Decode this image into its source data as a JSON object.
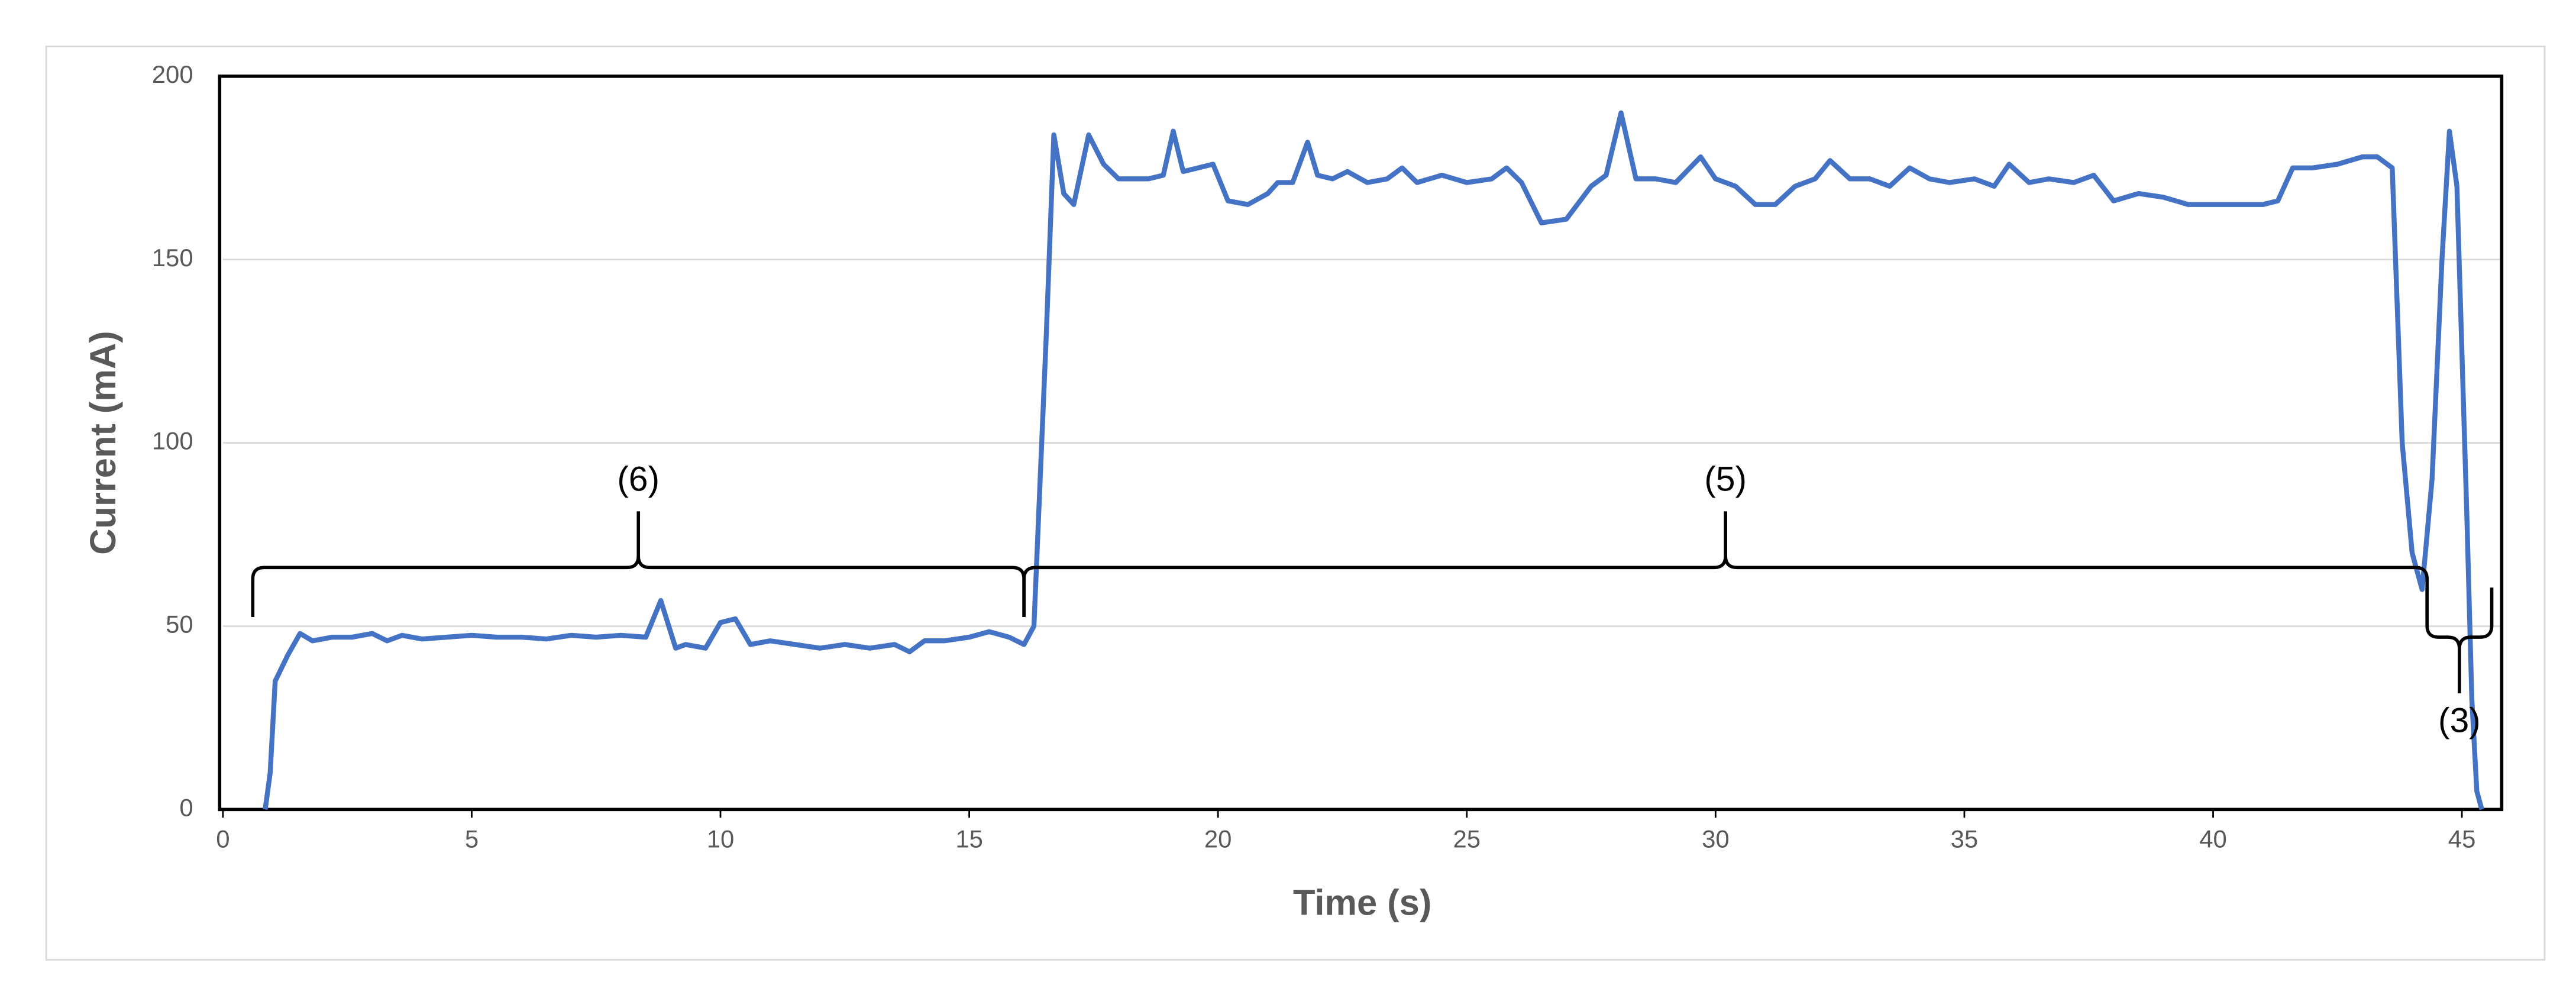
{
  "chart_data": {
    "type": "line",
    "x_label": "Time (s)",
    "y_label": "Current (mA)",
    "color": "#4472c4",
    "x": [
      0.85,
      0.95,
      1.05,
      1.3,
      1.55,
      1.8,
      2.2,
      2.6,
      3.0,
      3.3,
      3.6,
      4.0,
      4.5,
      5.0,
      5.5,
      6.0,
      6.5,
      7.0,
      7.5,
      8.0,
      8.5,
      8.8,
      9.1,
      9.3,
      9.7,
      10.0,
      10.3,
      10.6,
      11.0,
      11.5,
      12.0,
      12.5,
      13.0,
      13.5,
      13.8,
      14.1,
      14.5,
      15.0,
      15.4,
      15.8,
      16.1,
      16.3,
      16.55,
      16.7,
      16.9,
      17.1,
      17.4,
      17.7,
      18.0,
      18.3,
      18.6,
      18.9,
      19.1,
      19.3,
      19.6,
      19.9,
      20.2,
      20.6,
      21.0,
      21.2,
      21.5,
      21.8,
      22.0,
      22.3,
      22.6,
      23.0,
      23.4,
      23.7,
      24.0,
      24.5,
      25.0,
      25.5,
      25.8,
      26.1,
      26.5,
      27.0,
      27.5,
      27.8,
      28.1,
      28.4,
      28.8,
      29.2,
      29.7,
      30.0,
      30.4,
      30.8,
      31.2,
      31.6,
      32.0,
      32.3,
      32.7,
      33.1,
      33.5,
      33.9,
      34.3,
      34.7,
      35.2,
      35.6,
      35.9,
      36.3,
      36.7,
      37.2,
      37.6,
      38.0,
      38.5,
      39.0,
      39.5,
      40.0,
      40.5,
      41.0,
      41.3,
      41.6,
      42.0,
      42.5,
      43.0,
      43.3,
      43.6,
      43.8,
      44.0,
      44.2,
      44.4,
      44.6,
      44.75,
      44.9,
      45.1,
      45.2,
      45.3,
      45.4
    ],
    "values": [
      0,
      10,
      35,
      42,
      48,
      46,
      47,
      47,
      48,
      46,
      47.5,
      46.5,
      47,
      47.5,
      47,
      47,
      46.5,
      47.5,
      47,
      47.5,
      47,
      57,
      44,
      45,
      44,
      51,
      52,
      45,
      46,
      45,
      44,
      45,
      44,
      45,
      43,
      46,
      46,
      47,
      48.5,
      47,
      45,
      50,
      130,
      184,
      168,
      165,
      184,
      176,
      172,
      172,
      172,
      173,
      185,
      174,
      175,
      176,
      166,
      165,
      168,
      171,
      171,
      182,
      173,
      172,
      174,
      171,
      172,
      175,
      171,
      173,
      171,
      172,
      175,
      171,
      160,
      161,
      170,
      173,
      190,
      172,
      172,
      171,
      178,
      172,
      170,
      165,
      165,
      170,
      172,
      177,
      172,
      172,
      170,
      175,
      172,
      171,
      172,
      170,
      176,
      171,
      172,
      171,
      173,
      166,
      168,
      167,
      165,
      165,
      165,
      165,
      166,
      175,
      175,
      176,
      178,
      178,
      175,
      100,
      70,
      60,
      90,
      150,
      185,
      170,
      80,
      30,
      5,
      0
    ],
    "xlim": [
      0,
      45.8
    ],
    "ylim": [
      0,
      200
    ],
    "xticks": [
      0,
      5,
      10,
      15,
      20,
      25,
      30,
      35,
      40,
      45
    ],
    "yticks": [
      0,
      50,
      100,
      150,
      200
    ],
    "grid": true,
    "annotations": [
      {
        "text": "(6)",
        "x0": 0.6,
        "x1": 16.1,
        "y": 66,
        "direction": "up"
      },
      {
        "text": "(5)",
        "x0": 16.1,
        "x1": 44.3,
        "y": 66,
        "direction": "up"
      },
      {
        "text": "(3)",
        "x0": 44.3,
        "x1": 45.6,
        "y": 47,
        "direction": "down"
      }
    ]
  }
}
